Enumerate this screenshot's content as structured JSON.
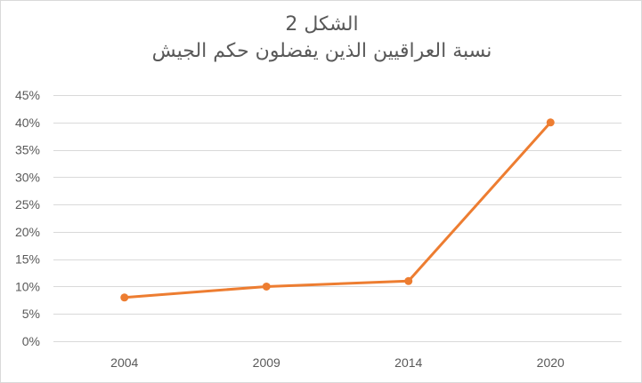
{
  "chart_data": {
    "type": "line",
    "title": "الشكل 2",
    "subtitle": "نسبة العراقيين الذين يفضلون حكم الجيش",
    "categories": [
      "2004",
      "2009",
      "2014",
      "2020"
    ],
    "series": [
      {
        "values": [
          8,
          10,
          11,
          40
        ],
        "color": "#ED7D31"
      }
    ],
    "ylim": [
      0,
      45
    ],
    "yticks": [
      "0%",
      "5%",
      "10%",
      "15%",
      "20%",
      "25%",
      "30%",
      "35%",
      "40%",
      "45%"
    ],
    "ytick_values": [
      0,
      5,
      10,
      15,
      20,
      25,
      30,
      35,
      40,
      45
    ],
    "grid": true,
    "legend": "none"
  }
}
